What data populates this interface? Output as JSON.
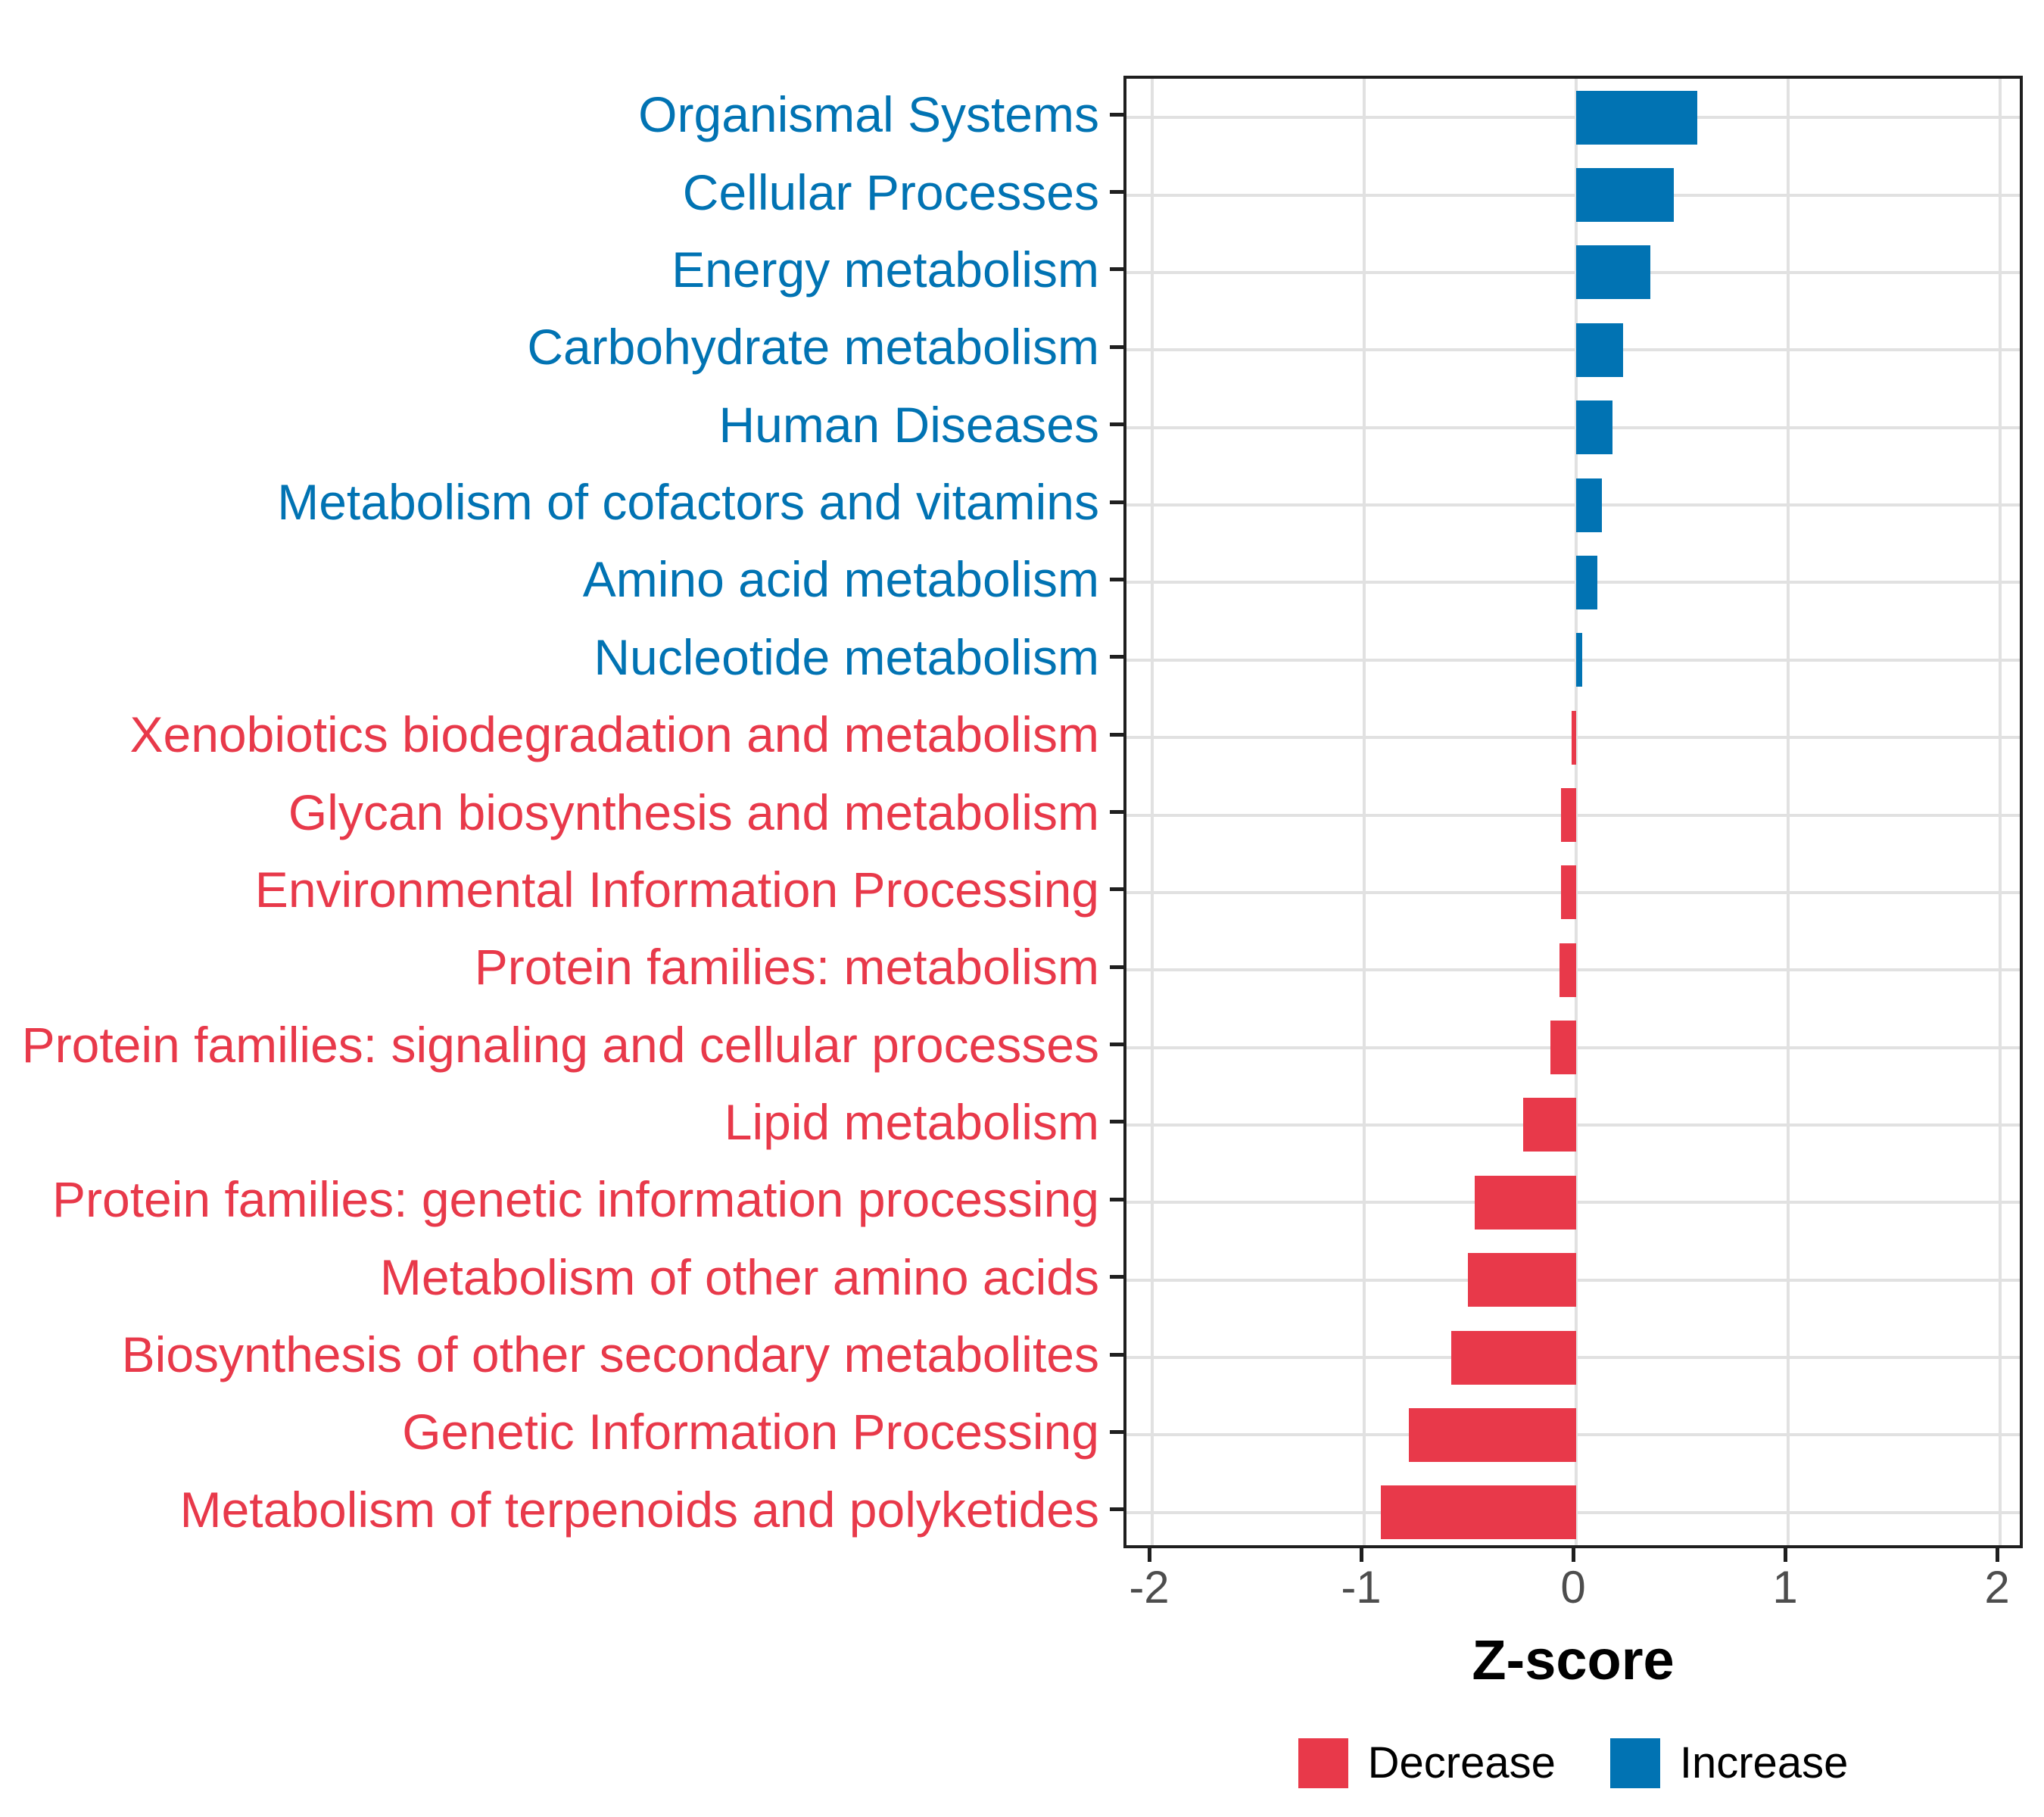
{
  "chart_data": {
    "type": "bar",
    "orientation": "horizontal",
    "title": "",
    "xlabel": "Z-score",
    "x_ticks": [
      -2,
      -1,
      0,
      1,
      2
    ],
    "x_tick_labels": [
      "-2",
      "-1",
      "0",
      "1",
      "2"
    ],
    "xlim": [
      -2.12,
      2.12
    ],
    "grid": "major-both",
    "legend_position": "bottom",
    "categories": [
      {
        "label": "Organismal Systems",
        "value": 0.57,
        "group": "increase"
      },
      {
        "label": "Cellular Processes",
        "value": 0.46,
        "group": "increase"
      },
      {
        "label": "Energy metabolism",
        "value": 0.35,
        "group": "increase"
      },
      {
        "label": "Carbohydrate metabolism",
        "value": 0.22,
        "group": "increase"
      },
      {
        "label": "Human Diseases",
        "value": 0.17,
        "group": "increase"
      },
      {
        "label": "Metabolism of cofactors and vitamins",
        "value": 0.12,
        "group": "increase"
      },
      {
        "label": "Amino acid metabolism",
        "value": 0.1,
        "group": "increase"
      },
      {
        "label": "Nucleotide metabolism",
        "value": 0.03,
        "group": "increase"
      },
      {
        "label": "Xenobiotics biodegradation and metabolism",
        "value": -0.02,
        "group": "decrease"
      },
      {
        "label": "Glycan biosynthesis and metabolism",
        "value": -0.07,
        "group": "decrease"
      },
      {
        "label": "Environmental Information Processing",
        "value": -0.07,
        "group": "decrease"
      },
      {
        "label": "Protein families: metabolism",
        "value": -0.08,
        "group": "decrease"
      },
      {
        "label": "Protein families: signaling and cellular processes",
        "value": -0.12,
        "group": "decrease"
      },
      {
        "label": "Lipid metabolism",
        "value": -0.25,
        "group": "decrease"
      },
      {
        "label": "Protein families: genetic information processing",
        "value": -0.48,
        "group": "decrease"
      },
      {
        "label": "Metabolism of other amino acids",
        "value": -0.51,
        "group": "decrease"
      },
      {
        "label": "Biosynthesis of other secondary metabolites",
        "value": -0.59,
        "group": "decrease"
      },
      {
        "label": "Genetic Information Processing",
        "value": -0.79,
        "group": "decrease"
      },
      {
        "label": "Metabolism of terpenoids and polyketides",
        "value": -0.92,
        "group": "decrease"
      }
    ],
    "colors": {
      "increase": "#0173B3",
      "decrease": "#E8394A"
    },
    "legend": [
      {
        "label": "Decrease",
        "group": "decrease",
        "color": "#E8394A"
      },
      {
        "label": "Increase",
        "group": "increase",
        "color": "#0173B3"
      }
    ]
  }
}
